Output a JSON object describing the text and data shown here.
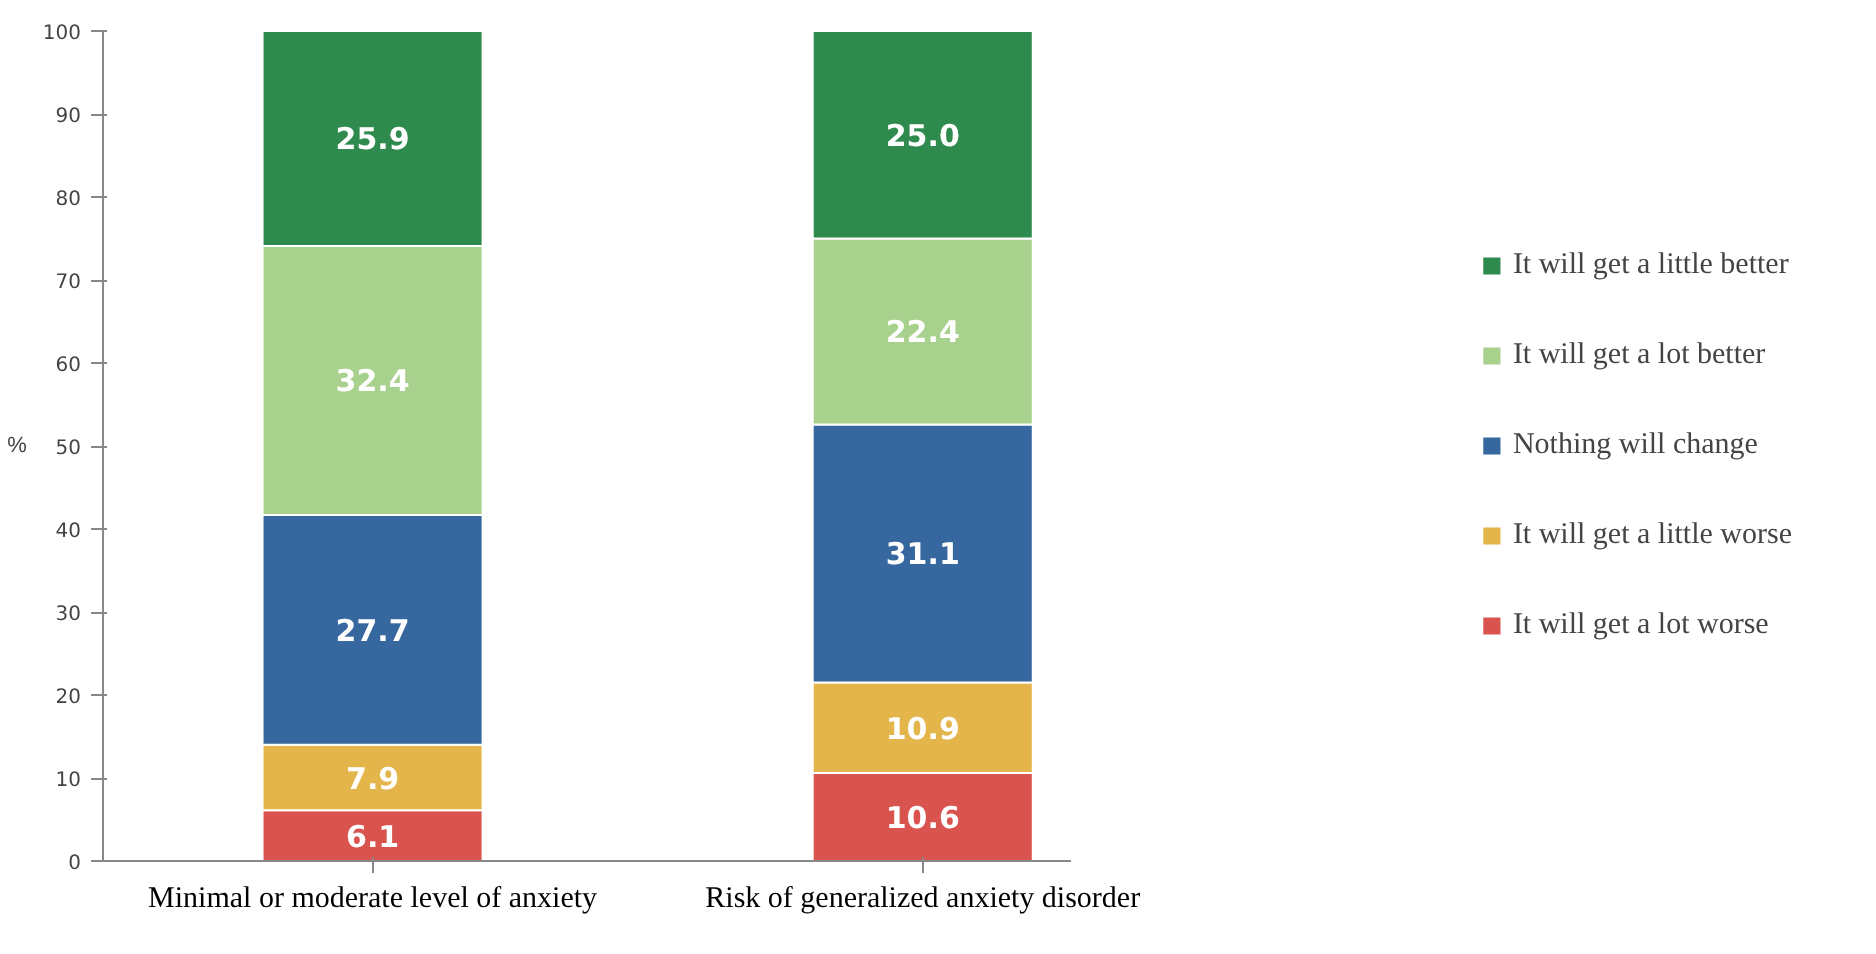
{
  "chart_data": {
    "type": "bar",
    "stacked": true,
    "ylabel": "%",
    "categories": [
      "Minimal or moderate level of anxiety",
      "Risk of generalized anxiety disorder"
    ],
    "series": [
      {
        "name": "It will get a lot worse",
        "color": "#d9534f",
        "values": [
          6.1,
          10.6
        ]
      },
      {
        "name": "It will get a little worse",
        "color": "#e3b54a",
        "values": [
          7.9,
          10.9
        ]
      },
      {
        "name": "Nothing will change",
        "color": "#36679e",
        "values": [
          27.7,
          31.1
        ]
      },
      {
        "name": "It will get a lot better",
        "color": "#a9d18e",
        "values": [
          32.4,
          22.4
        ]
      },
      {
        "name": "It will get a little better",
        "color": "#2f8a4e",
        "values": [
          25.9,
          25.0
        ],
        "value_labels": [
          "25.9",
          "25.0"
        ]
      }
    ],
    "ylim": [
      0,
      100
    ],
    "yticks": [
      0,
      10,
      20,
      30,
      40,
      50,
      60,
      70,
      80,
      90,
      100
    ],
    "data_labels": true,
    "legend": "right",
    "grid": false
  }
}
